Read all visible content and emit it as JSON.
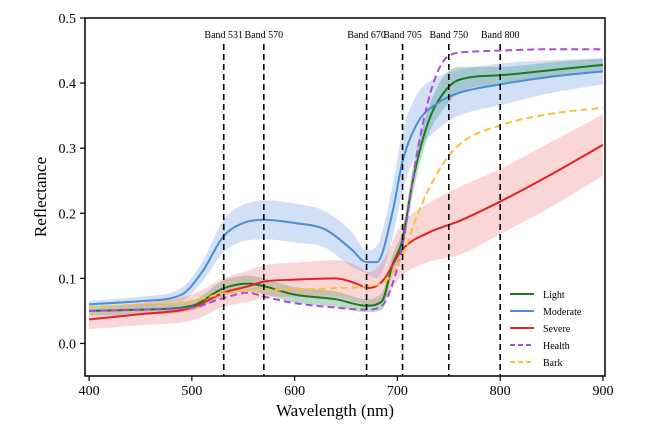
{
  "chart_data": {
    "type": "line",
    "xlabel": "Wavelength (nm)",
    "ylabel": "Reflectance",
    "xlim": [
      396,
      902
    ],
    "ylim": [
      -0.05,
      0.5
    ],
    "xticks": [
      400,
      500,
      600,
      700,
      800,
      900
    ],
    "yticks": [
      0.0,
      0.1,
      0.2,
      0.3,
      0.4,
      0.5
    ],
    "xtick_labels": [
      "400",
      "500",
      "600",
      "700",
      "800",
      "900"
    ],
    "ytick_labels": [
      "0.0",
      "0.1",
      "0.2",
      "0.3",
      "0.4",
      "0.5"
    ],
    "grid": false,
    "legend_position": "bottom-right",
    "bands": [
      {
        "x": 531,
        "label": "Band 531"
      },
      {
        "x": 570,
        "label": "Band 570"
      },
      {
        "x": 670,
        "label": "Band 670"
      },
      {
        "x": 705,
        "label": "Band 705"
      },
      {
        "x": 750,
        "label": "Band 750"
      },
      {
        "x": 800,
        "label": "Band 800"
      }
    ],
    "series": [
      {
        "name": "Light",
        "color": "#1a7a1a",
        "dashed": false,
        "band_color": "#2e8b57",
        "points": [
          [
            400,
            0.05
          ],
          [
            450,
            0.052
          ],
          [
            500,
            0.058
          ],
          [
            531,
            0.085
          ],
          [
            555,
            0.092
          ],
          [
            570,
            0.088
          ],
          [
            600,
            0.075
          ],
          [
            640,
            0.068
          ],
          [
            670,
            0.058
          ],
          [
            685,
            0.065
          ],
          [
            695,
            0.12
          ],
          [
            705,
            0.16
          ],
          [
            715,
            0.25
          ],
          [
            730,
            0.34
          ],
          [
            745,
            0.385
          ],
          [
            760,
            0.405
          ],
          [
            800,
            0.412
          ],
          [
            850,
            0.42
          ],
          [
            900,
            0.428
          ]
        ],
        "upper": [
          [
            400,
            0.057
          ],
          [
            450,
            0.06
          ],
          [
            500,
            0.066
          ],
          [
            531,
            0.097
          ],
          [
            555,
            0.104
          ],
          [
            570,
            0.1
          ],
          [
            600,
            0.087
          ],
          [
            640,
            0.08
          ],
          [
            670,
            0.068
          ],
          [
            685,
            0.078
          ],
          [
            695,
            0.135
          ],
          [
            705,
            0.175
          ],
          [
            715,
            0.27
          ],
          [
            730,
            0.36
          ],
          [
            745,
            0.41
          ],
          [
            760,
            0.425
          ],
          [
            800,
            0.425
          ],
          [
            850,
            0.432
          ],
          [
            900,
            0.438
          ]
        ],
        "lower": [
          [
            400,
            0.043
          ],
          [
            450,
            0.044
          ],
          [
            500,
            0.05
          ],
          [
            531,
            0.073
          ],
          [
            555,
            0.08
          ],
          [
            570,
            0.076
          ],
          [
            600,
            0.063
          ],
          [
            640,
            0.056
          ],
          [
            670,
            0.048
          ],
          [
            685,
            0.052
          ],
          [
            695,
            0.105
          ],
          [
            705,
            0.145
          ],
          [
            715,
            0.23
          ],
          [
            730,
            0.32
          ],
          [
            745,
            0.36
          ],
          [
            760,
            0.385
          ],
          [
            800,
            0.398
          ],
          [
            850,
            0.408
          ],
          [
            900,
            0.418
          ]
        ]
      },
      {
        "name": "Moderate",
        "color": "#4a8ed6",
        "dashed": false,
        "band_color": "#6f9ee0",
        "points": [
          [
            400,
            0.06
          ],
          [
            450,
            0.065
          ],
          [
            490,
            0.075
          ],
          [
            510,
            0.11
          ],
          [
            531,
            0.165
          ],
          [
            550,
            0.185
          ],
          [
            570,
            0.19
          ],
          [
            600,
            0.185
          ],
          [
            630,
            0.175
          ],
          [
            655,
            0.145
          ],
          [
            670,
            0.125
          ],
          [
            680,
            0.125
          ],
          [
            695,
            0.2
          ],
          [
            705,
            0.28
          ],
          [
            720,
            0.34
          ],
          [
            740,
            0.37
          ],
          [
            760,
            0.385
          ],
          [
            800,
            0.398
          ],
          [
            850,
            0.41
          ],
          [
            900,
            0.418
          ]
        ],
        "upper": [
          [
            400,
            0.065
          ],
          [
            450,
            0.072
          ],
          [
            490,
            0.085
          ],
          [
            510,
            0.125
          ],
          [
            531,
            0.19
          ],
          [
            550,
            0.213
          ],
          [
            570,
            0.22
          ],
          [
            600,
            0.215
          ],
          [
            630,
            0.203
          ],
          [
            655,
            0.172
          ],
          [
            670,
            0.143
          ],
          [
            680,
            0.15
          ],
          [
            695,
            0.24
          ],
          [
            705,
            0.325
          ],
          [
            720,
            0.385
          ],
          [
            740,
            0.41
          ],
          [
            760,
            0.42
          ],
          [
            800,
            0.43
          ],
          [
            850,
            0.435
          ],
          [
            900,
            0.438
          ]
        ],
        "lower": [
          [
            400,
            0.055
          ],
          [
            450,
            0.058
          ],
          [
            490,
            0.065
          ],
          [
            510,
            0.095
          ],
          [
            531,
            0.14
          ],
          [
            550,
            0.157
          ],
          [
            570,
            0.16
          ],
          [
            600,
            0.155
          ],
          [
            630,
            0.147
          ],
          [
            655,
            0.118
          ],
          [
            670,
            0.107
          ],
          [
            680,
            0.1
          ],
          [
            695,
            0.16
          ],
          [
            705,
            0.235
          ],
          [
            720,
            0.295
          ],
          [
            740,
            0.33
          ],
          [
            760,
            0.35
          ],
          [
            800,
            0.366
          ],
          [
            850,
            0.385
          ],
          [
            900,
            0.398
          ]
        ]
      },
      {
        "name": "Severe",
        "color": "#e32222",
        "dashed": false,
        "band_color": "#f08080",
        "points": [
          [
            400,
            0.037
          ],
          [
            450,
            0.045
          ],
          [
            500,
            0.055
          ],
          [
            531,
            0.078
          ],
          [
            555,
            0.088
          ],
          [
            570,
            0.095
          ],
          [
            600,
            0.098
          ],
          [
            640,
            0.1
          ],
          [
            660,
            0.092
          ],
          [
            672,
            0.085
          ],
          [
            685,
            0.095
          ],
          [
            705,
            0.145
          ],
          [
            730,
            0.17
          ],
          [
            760,
            0.188
          ],
          [
            800,
            0.218
          ],
          [
            850,
            0.26
          ],
          [
            900,
            0.305
          ]
        ],
        "upper": [
          [
            400,
            0.052
          ],
          [
            450,
            0.062
          ],
          [
            500,
            0.075
          ],
          [
            531,
            0.1
          ],
          [
            555,
            0.112
          ],
          [
            570,
            0.12
          ],
          [
            600,
            0.124
          ],
          [
            640,
            0.128
          ],
          [
            660,
            0.12
          ],
          [
            672,
            0.11
          ],
          [
            685,
            0.125
          ],
          [
            705,
            0.185
          ],
          [
            730,
            0.215
          ],
          [
            760,
            0.24
          ],
          [
            800,
            0.268
          ],
          [
            850,
            0.31
          ],
          [
            900,
            0.352
          ]
        ],
        "lower": [
          [
            400,
            0.022
          ],
          [
            450,
            0.028
          ],
          [
            500,
            0.035
          ],
          [
            531,
            0.056
          ],
          [
            555,
            0.064
          ],
          [
            570,
            0.07
          ],
          [
            600,
            0.072
          ],
          [
            640,
            0.072
          ],
          [
            660,
            0.064
          ],
          [
            672,
            0.06
          ],
          [
            685,
            0.065
          ],
          [
            705,
            0.105
          ],
          [
            730,
            0.125
          ],
          [
            760,
            0.136
          ],
          [
            800,
            0.168
          ],
          [
            850,
            0.21
          ],
          [
            900,
            0.258
          ]
        ]
      },
      {
        "name": "Health",
        "color": "#a94ce0",
        "dashed": true,
        "points": [
          [
            400,
            0.05
          ],
          [
            450,
            0.052
          ],
          [
            500,
            0.055
          ],
          [
            531,
            0.07
          ],
          [
            555,
            0.078
          ],
          [
            570,
            0.072
          ],
          [
            600,
            0.062
          ],
          [
            640,
            0.055
          ],
          [
            670,
            0.052
          ],
          [
            685,
            0.058
          ],
          [
            697,
            0.1
          ],
          [
            705,
            0.15
          ],
          [
            720,
            0.3
          ],
          [
            735,
            0.4
          ],
          [
            750,
            0.442
          ],
          [
            770,
            0.448
          ],
          [
            800,
            0.45
          ],
          [
            850,
            0.452
          ],
          [
            900,
            0.452
          ]
        ]
      },
      {
        "name": "Bark",
        "color": "#f5c23a",
        "dashed": true,
        "points": [
          [
            400,
            0.055
          ],
          [
            450,
            0.06
          ],
          [
            500,
            0.065
          ],
          [
            531,
            0.077
          ],
          [
            570,
            0.082
          ],
          [
            600,
            0.083
          ],
          [
            640,
            0.085
          ],
          [
            670,
            0.088
          ],
          [
            690,
            0.098
          ],
          [
            705,
            0.135
          ],
          [
            720,
            0.2
          ],
          [
            740,
            0.265
          ],
          [
            760,
            0.305
          ],
          [
            800,
            0.335
          ],
          [
            850,
            0.353
          ],
          [
            900,
            0.362
          ]
        ]
      }
    ]
  }
}
